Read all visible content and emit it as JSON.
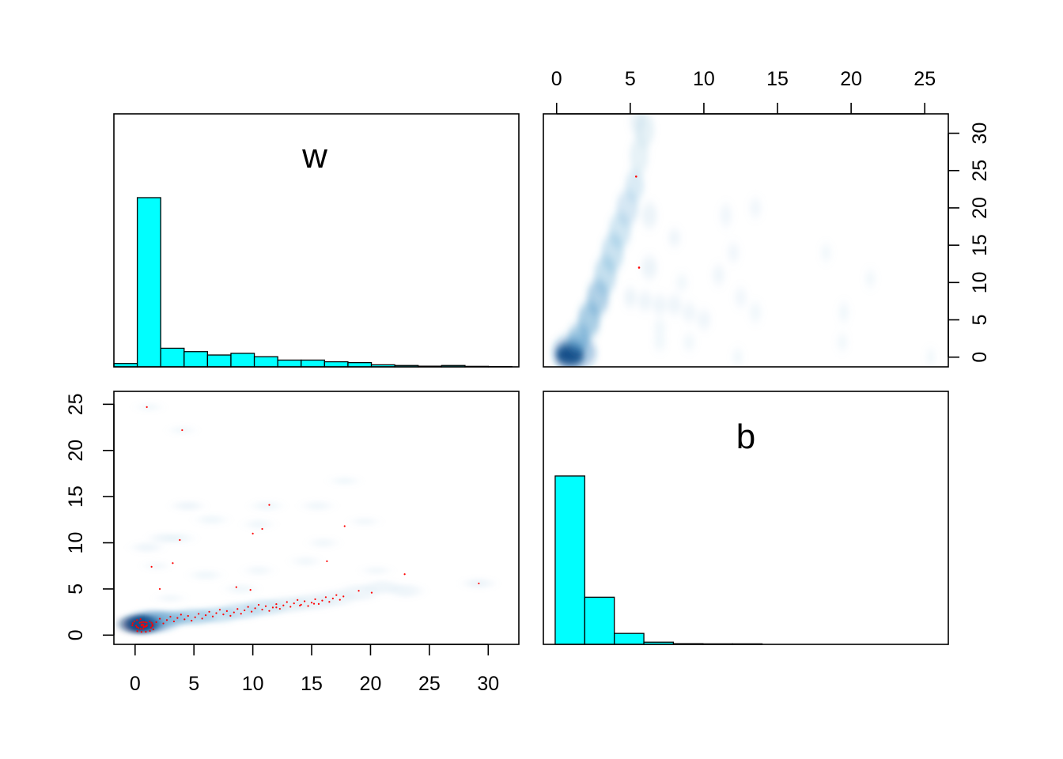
{
  "chart_data": [
    {
      "type": "histogram",
      "panel": "diagonal-top-left",
      "label": "w",
      "bin_edges": [
        -2,
        0,
        2,
        4,
        6,
        8,
        10,
        12,
        14,
        16,
        18,
        20,
        22,
        24,
        26,
        28,
        30,
        32
      ],
      "values": [
        0.02,
        1.0,
        0.11,
        0.09,
        0.07,
        0.08,
        0.06,
        0.04,
        0.04,
        0.03,
        0.025,
        0.012,
        0.008,
        0.004,
        0.008,
        0.003,
        0.002
      ],
      "color": "#00ffff"
    },
    {
      "type": "heatmap",
      "panel": "top-right",
      "xlim": [
        -0.9,
        26.6
      ],
      "ylim": [
        -1.3,
        32.6
      ],
      "x_ticks": [
        0,
        5,
        10,
        15,
        20,
        25
      ],
      "y_ticks": [
        0,
        5,
        10,
        15,
        20,
        25,
        30
      ],
      "x_axis_side": "top",
      "y_axis_side": "right",
      "color_scale": [
        "#ffffff",
        "#08306b"
      ],
      "points": [
        {
          "x": 5.4,
          "y": 24.2,
          "color": "#ff0000"
        },
        {
          "x": 5.6,
          "y": 12.0,
          "color": "#ff0000"
        }
      ]
    },
    {
      "type": "heatmap",
      "panel": "bottom-left",
      "xlim": [
        -1.8,
        32.6
      ],
      "ylim": [
        -1.0,
        26.4
      ],
      "x_ticks": [
        0,
        5,
        10,
        15,
        20,
        25,
        30
      ],
      "y_ticks": [
        0,
        5,
        10,
        15,
        20,
        25
      ],
      "x_axis_side": "bottom",
      "y_axis_side": "left",
      "color_scale": [
        "#ffffff",
        "#08306b"
      ],
      "points_color": "#ff0000"
    },
    {
      "type": "histogram",
      "panel": "diagonal-bottom-right",
      "label": "b",
      "bin_edges": [
        0,
        2,
        4,
        6,
        8,
        10,
        12,
        14,
        16,
        18,
        20,
        22,
        24,
        26
      ],
      "values": [
        1.0,
        0.28,
        0.065,
        0.013,
        0.004,
        0.003,
        0.003,
        0,
        0,
        0,
        0,
        0,
        0
      ],
      "color": "#00ffff"
    }
  ]
}
